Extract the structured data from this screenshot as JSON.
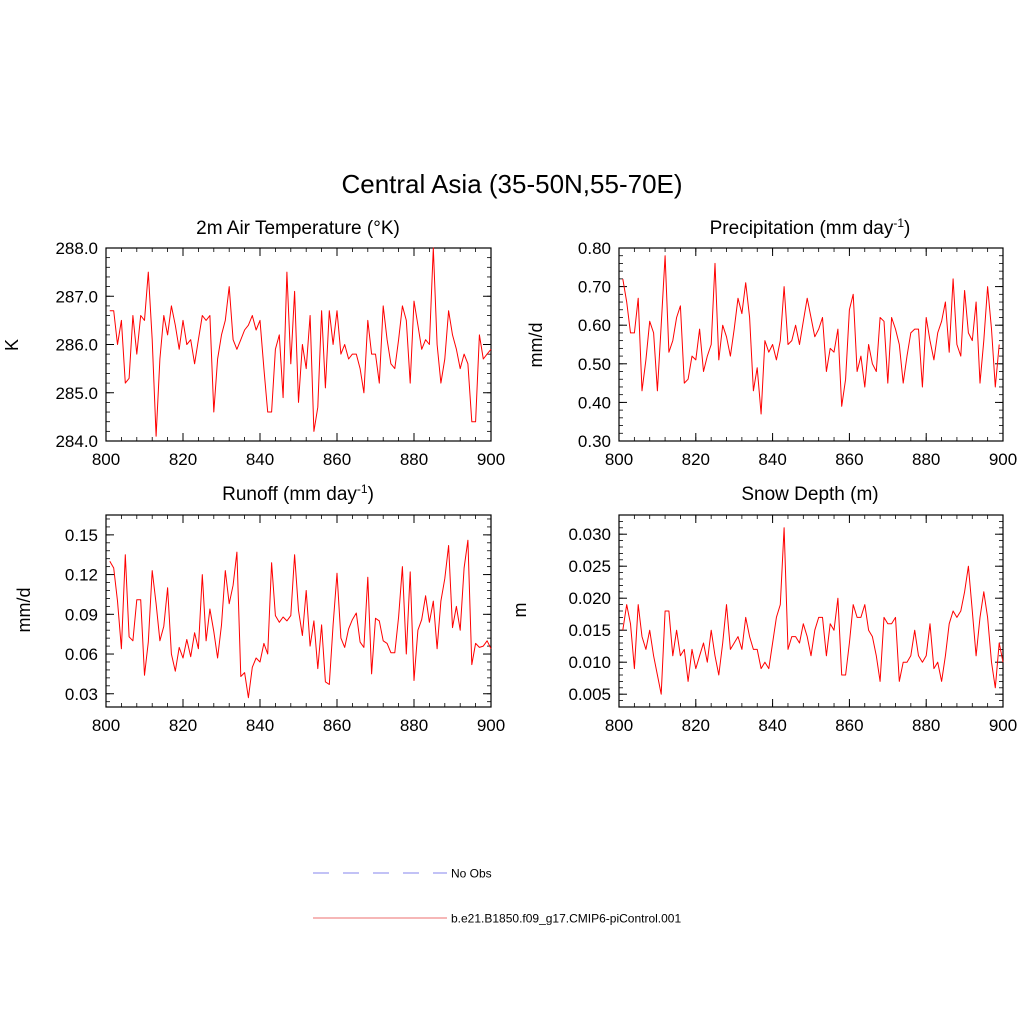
{
  "figure": {
    "title": "Central Asia (35-50N,55-70E)"
  },
  "legend": {
    "entries": [
      {
        "label": "No Obs",
        "color": "#9e9ef0",
        "style": "dashed"
      },
      {
        "label": "b.e21.B1850.f09_g17.CMIP6-piControl.001",
        "color": "#f08c8c",
        "style": "solid"
      }
    ]
  },
  "colors": {
    "series": "#ff0000",
    "axis": "#000000"
  },
  "chart_data": [
    {
      "type": "line",
      "title": "2m Air Temperature",
      "title_suffix": "(°K)",
      "ylabel": "K",
      "xlim": [
        800,
        900
      ],
      "ylim": [
        284.0,
        288.0
      ],
      "xticks": [
        800,
        820,
        840,
        860,
        880,
        900
      ],
      "yticks": [
        284.0,
        285.0,
        286.0,
        287.0,
        288.0
      ],
      "ytick_labels": [
        "284.0",
        "285.0",
        "286.0",
        "287.0",
        "288.0"
      ],
      "series": [
        {
          "x_start": 801,
          "values": [
            286.7,
            286.7,
            286.0,
            286.5,
            285.2,
            285.3,
            286.6,
            285.8,
            286.6,
            286.5,
            287.5,
            286.1,
            284.1,
            285.7,
            286.6,
            286.2,
            286.8,
            286.4,
            285.9,
            286.5,
            286.0,
            286.1,
            285.6,
            286.1,
            286.6,
            286.5,
            286.6,
            284.6,
            285.7,
            286.2,
            286.5,
            287.2,
            286.1,
            285.9,
            286.1,
            286.3,
            286.4,
            286.6,
            286.3,
            286.5,
            285.5,
            284.6,
            284.6,
            285.9,
            286.2,
            284.9,
            287.5,
            285.6,
            287.1,
            284.8,
            286.0,
            285.5,
            286.6,
            284.2,
            284.7,
            286.7,
            285.1,
            286.7,
            286.0,
            286.7,
            285.8,
            286.0,
            285.7,
            285.8,
            285.8,
            285.5,
            285.0,
            286.5,
            285.8,
            285.8,
            285.2,
            286.8,
            286.1,
            285.6,
            285.5,
            286.1,
            286.8,
            286.5,
            285.2,
            286.9,
            286.4,
            285.9,
            286.1,
            286.0,
            288.0,
            286.0,
            285.2,
            285.7,
            286.7,
            286.2,
            285.9,
            285.5,
            285.8,
            285.6,
            284.4,
            284.4,
            286.2,
            285.7,
            285.8,
            285.9
          ]
        }
      ]
    },
    {
      "type": "line",
      "title": "Precipitation (mm day",
      "title_superscript": "-1",
      "title_close": ")",
      "ylabel": "mm/d",
      "xlim": [
        800,
        900
      ],
      "ylim": [
        0.3,
        0.8
      ],
      "xticks": [
        800,
        820,
        840,
        860,
        880,
        900
      ],
      "yticks": [
        0.3,
        0.4,
        0.5,
        0.6,
        0.7,
        0.8
      ],
      "ytick_labels": [
        "0.30",
        "0.40",
        "0.50",
        "0.60",
        "0.70",
        "0.80"
      ],
      "series": [
        {
          "x_start": 801,
          "values": [
            0.72,
            0.66,
            0.58,
            0.58,
            0.67,
            0.43,
            0.51,
            0.61,
            0.58,
            0.43,
            0.6,
            0.78,
            0.53,
            0.56,
            0.62,
            0.65,
            0.45,
            0.46,
            0.52,
            0.51,
            0.59,
            0.48,
            0.52,
            0.55,
            0.76,
            0.51,
            0.6,
            0.57,
            0.52,
            0.59,
            0.67,
            0.63,
            0.71,
            0.62,
            0.43,
            0.49,
            0.37,
            0.56,
            0.53,
            0.55,
            0.51,
            0.56,
            0.7,
            0.55,
            0.56,
            0.6,
            0.55,
            0.61,
            0.67,
            0.62,
            0.57,
            0.59,
            0.62,
            0.48,
            0.54,
            0.53,
            0.59,
            0.39,
            0.46,
            0.64,
            0.68,
            0.48,
            0.52,
            0.44,
            0.55,
            0.5,
            0.48,
            0.62,
            0.61,
            0.45,
            0.62,
            0.59,
            0.55,
            0.45,
            0.52,
            0.58,
            0.59,
            0.59,
            0.44,
            0.62,
            0.56,
            0.51,
            0.58,
            0.61,
            0.66,
            0.53,
            0.72,
            0.55,
            0.52,
            0.69,
            0.58,
            0.56,
            0.66,
            0.45,
            0.56,
            0.7,
            0.59,
            0.44,
            0.55
          ]
        }
      ]
    },
    {
      "type": "line",
      "title": "Runoff (mm day",
      "title_superscript": "-1",
      "title_close": ")",
      "ylabel": "mm/d",
      "xlim": [
        800,
        900
      ],
      "ylim": [
        0.02,
        0.165
      ],
      "xticks": [
        800,
        820,
        840,
        860,
        880,
        900
      ],
      "yticks": [
        0.03,
        0.06,
        0.09,
        0.12,
        0.15
      ],
      "ytick_labels": [
        "0.03",
        "0.06",
        "0.09",
        "0.12",
        "0.15"
      ],
      "series": [
        {
          "x_start": 801,
          "values": [
            0.13,
            0.125,
            0.1,
            0.064,
            0.135,
            0.073,
            0.07,
            0.101,
            0.101,
            0.044,
            0.069,
            0.123,
            0.098,
            0.07,
            0.081,
            0.11,
            0.06,
            0.047,
            0.065,
            0.057,
            0.071,
            0.058,
            0.076,
            0.064,
            0.12,
            0.07,
            0.094,
            0.077,
            0.057,
            0.082,
            0.123,
            0.098,
            0.112,
            0.137,
            0.043,
            0.046,
            0.027,
            0.05,
            0.057,
            0.054,
            0.068,
            0.06,
            0.129,
            0.089,
            0.084,
            0.088,
            0.085,
            0.089,
            0.135,
            0.093,
            0.074,
            0.108,
            0.066,
            0.085,
            0.049,
            0.082,
            0.039,
            0.037,
            0.082,
            0.121,
            0.072,
            0.065,
            0.079,
            0.086,
            0.091,
            0.069,
            0.065,
            0.118,
            0.045,
            0.087,
            0.085,
            0.07,
            0.068,
            0.061,
            0.061,
            0.088,
            0.126,
            0.06,
            0.122,
            0.04,
            0.078,
            0.086,
            0.104,
            0.084,
            0.1,
            0.064,
            0.1,
            0.117,
            0.142,
            0.08,
            0.096,
            0.078,
            0.125,
            0.146,
            0.052,
            0.068,
            0.065,
            0.066,
            0.07,
            0.064
          ]
        }
      ]
    },
    {
      "type": "line",
      "title": "Snow Depth (m)",
      "ylabel": "m",
      "xlim": [
        800,
        900
      ],
      "ylim": [
        0.003,
        0.033
      ],
      "xticks": [
        800,
        820,
        840,
        860,
        880,
        900
      ],
      "yticks": [
        0.005,
        0.01,
        0.015,
        0.02,
        0.025,
        0.03
      ],
      "ytick_labels": [
        "0.005",
        "0.010",
        "0.015",
        "0.020",
        "0.025",
        "0.030"
      ],
      "series": [
        {
          "x_start": 801,
          "values": [
            0.015,
            0.019,
            0.016,
            0.009,
            0.019,
            0.014,
            0.012,
            0.015,
            0.011,
            0.008,
            0.005,
            0.018,
            0.018,
            0.011,
            0.015,
            0.011,
            0.012,
            0.007,
            0.012,
            0.009,
            0.011,
            0.013,
            0.01,
            0.015,
            0.011,
            0.008,
            0.013,
            0.019,
            0.012,
            0.013,
            0.014,
            0.012,
            0.017,
            0.014,
            0.012,
            0.012,
            0.009,
            0.01,
            0.009,
            0.013,
            0.017,
            0.019,
            0.031,
            0.012,
            0.014,
            0.014,
            0.013,
            0.016,
            0.014,
            0.011,
            0.015,
            0.017,
            0.017,
            0.011,
            0.016,
            0.015,
            0.02,
            0.008,
            0.008,
            0.013,
            0.019,
            0.017,
            0.017,
            0.019,
            0.015,
            0.014,
            0.011,
            0.007,
            0.017,
            0.016,
            0.016,
            0.017,
            0.007,
            0.01,
            0.01,
            0.011,
            0.015,
            0.011,
            0.01,
            0.011,
            0.016,
            0.009,
            0.01,
            0.007,
            0.011,
            0.016,
            0.018,
            0.017,
            0.018,
            0.021,
            0.025,
            0.018,
            0.011,
            0.017,
            0.021,
            0.017,
            0.01,
            0.006,
            0.013,
            0.01
          ]
        }
      ]
    }
  ]
}
